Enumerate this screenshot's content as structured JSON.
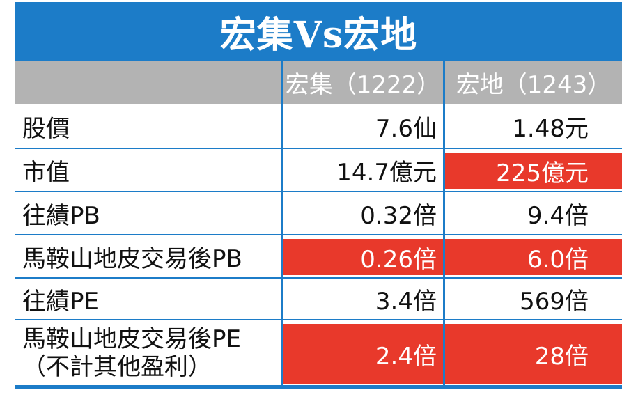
{
  "title": "宏集Vs宏地",
  "header": {
    "col1": "宏集（1222）",
    "col2": "宏地（1243）"
  },
  "rows": [
    {
      "label": "股價",
      "v1": "7.6仙",
      "v2": "1.48元"
    },
    {
      "label": "市值",
      "v1": "14.7億元",
      "v2": "225億元"
    },
    {
      "label": "往績PB",
      "v1": "0.32倍",
      "v2": "9.4倍"
    },
    {
      "label": "馬鞍山地皮交易後PB",
      "v1": "0.26倍",
      "v2": "6.0倍"
    },
    {
      "label": "往績PE",
      "v1": "3.4倍",
      "v2": "569倍"
    },
    {
      "label_line1": "馬鞍山地皮交易後PE",
      "label_line2": "（不計其他盈利）",
      "v1": "2.4倍",
      "v2": "28倍"
    }
  ],
  "colors": {
    "blue": "#1c7cc8",
    "header_gray": "#b3b3b3",
    "highlight_red": "#e8392b"
  }
}
